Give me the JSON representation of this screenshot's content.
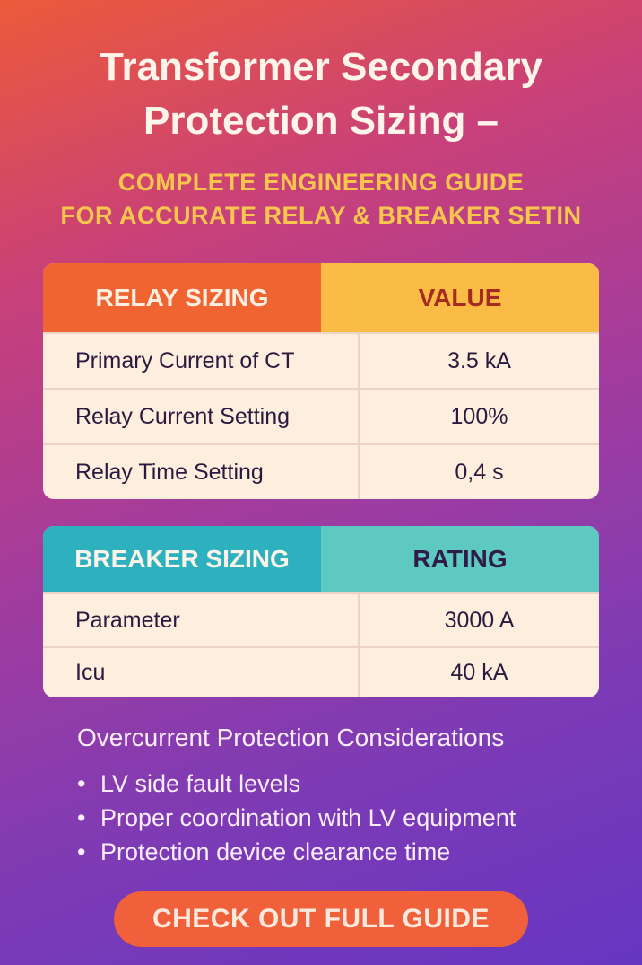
{
  "title": {
    "line1": "Transformer Secondary",
    "line2": "Protection Sizing –"
  },
  "subtitle": {
    "line1": "COMPLETE ENGINEERING GUIDE",
    "line2": "FOR ACCURATE RELAY & BREAKER SETIN"
  },
  "relay_table": {
    "headers": [
      "RELAY SIZING",
      "VALUE"
    ],
    "header_colors": [
      "#ef6431",
      "#fbbc45"
    ],
    "rows": [
      {
        "label": "Primary Current of CT",
        "value": "3.5 kA"
      },
      {
        "label": "Relay Current Setting",
        "value": "100%"
      },
      {
        "label": "Relay Time Setting",
        "value": "0,4 s"
      }
    ]
  },
  "breaker_table": {
    "headers": [
      "BREAKER SIZING",
      "RATING"
    ],
    "header_colors": [
      "#2db1bf",
      "#5ec9c0"
    ],
    "rows": [
      {
        "label": "Parameter",
        "value": "3000 A"
      },
      {
        "label": "Icu",
        "value": "40 kA"
      }
    ]
  },
  "considerations": {
    "heading": "Overcurrent Protection Considerations",
    "items": [
      "LV side fault levels",
      "Proper coordination with LV equipment",
      "Protection device clearance time"
    ]
  },
  "cta": {
    "label": "CHECK OUT FULL GUIDE"
  }
}
